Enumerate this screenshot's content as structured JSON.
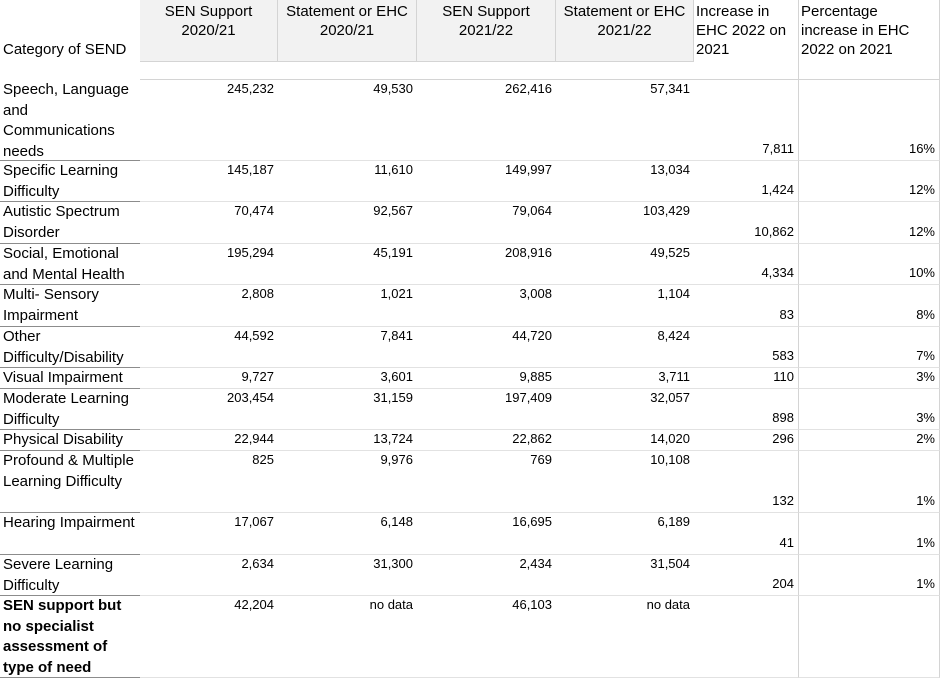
{
  "table": {
    "header": [
      "Category of SEND",
      "SEN Support 2020/21",
      "Statement or EHC 2020/21",
      "SEN Support 2021/22",
      "Statement or EHC 2021/22",
      "Increase in EHC 2022 on 2021",
      "Percentage increase in EHC 2022 on 2021"
    ],
    "rows": [
      [
        "Speech, Language and Communications needs",
        "245,232",
        "49,530",
        "262,416",
        "57,341",
        "7,811",
        "16%"
      ],
      [
        "Specific Learning Difficulty",
        "145,187",
        "11,610",
        "149,997",
        "13,034",
        "1,424",
        "12%"
      ],
      [
        "Autistic Spectrum Disorder",
        "70,474",
        "92,567",
        "79,064",
        "103,429",
        "10,862",
        "12%"
      ],
      [
        "Social, Emotional and Mental Health",
        "195,294",
        "45,191",
        "208,916",
        "49,525",
        "4,334",
        "10%"
      ],
      [
        "Multi- Sensory Impairment",
        "2,808",
        "1,021",
        "3,008",
        "1,104",
        "83",
        "8%"
      ],
      [
        "Other Difficulty/Disability",
        "44,592",
        "7,841",
        "44,720",
        "8,424",
        "583",
        "7%"
      ],
      [
        "Visual Impairment",
        "9,727",
        "3,601",
        "9,885",
        "3,711",
        "110",
        "3%"
      ],
      [
        "Moderate Learning Difficulty",
        "203,454",
        "31,159",
        "197,409",
        "32,057",
        "898",
        "3%"
      ],
      [
        "Physical Disability",
        "22,944",
        "13,724",
        "22,862",
        "14,020",
        "296",
        "2%"
      ],
      [
        "Profound & Multiple Learning Difficulty",
        "825",
        "9,976",
        "769",
        "10,108",
        "132",
        "1%"
      ],
      [
        "Hearing Impairment",
        "17,067",
        "6,148",
        "16,695",
        "6,189",
        "41",
        "1%"
      ],
      [
        "Severe Learning Difficulty",
        "2,634",
        "31,300",
        "2,434",
        "31,504",
        "204",
        "1%"
      ],
      [
        "SEN support but no specialist assessment of type of need",
        "42,204",
        "no data",
        "46,103",
        "no data"
      ]
    ]
  }
}
